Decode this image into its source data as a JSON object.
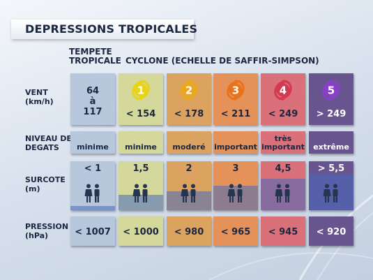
{
  "title": "DEPRESSIONS TROPICALES",
  "headers": {
    "tempete_line1": "TEMPETE",
    "tempete_line2": "TROPICALE",
    "cyclone": "CYCLONE (ECHELLE DE SAFFIR-SIMPSON)"
  },
  "rows": {
    "vent_line1": "VENT",
    "vent_line2": "(km/h)",
    "niveau_line1": "NIVEAU DE",
    "niveau_line2": "DEGATS",
    "surcote_line1": "SURCOTE",
    "surcote_line2": "(m)",
    "pression_line1": "PRESSION",
    "pression_line2": "(hPa)"
  },
  "columns": [
    {
      "category": "",
      "vent_a": "64",
      "vent_b": "à",
      "vent_c": "117",
      "vent": "",
      "degats": "minime",
      "degats2": "",
      "surcote": "< 1",
      "water_level": 0.12,
      "pression": "< 1007",
      "color": "#b7c7dc"
    },
    {
      "category": "1",
      "vent": "< 154",
      "degats": "minime",
      "degats2": "",
      "surcote": "1,5",
      "water_level": 0.42,
      "pression": "< 1000",
      "color": "#d4d89a",
      "icon_color": "#e8d21a"
    },
    {
      "category": "2",
      "vent": "< 178",
      "degats": "moderé",
      "degats2": "",
      "surcote": "2",
      "water_level": 0.52,
      "pression": "< 980",
      "color": "#dca360",
      "icon_color": "#e9a81e"
    },
    {
      "category": "3",
      "vent": "< 211",
      "degats": "important",
      "degats2": "",
      "surcote": "3",
      "water_level": 0.68,
      "pression": "< 965",
      "color": "#e5925a",
      "icon_color": "#e8731c"
    },
    {
      "category": "4",
      "vent": "< 249",
      "degats": "très",
      "degats2": "important",
      "surcote": "4,5",
      "water_level": 0.86,
      "pression": "< 945",
      "color": "#d9707a",
      "icon_color": "#d33a52"
    },
    {
      "category": "5",
      "vent": "> 249",
      "degats": "extrême",
      "degats2": "",
      "surcote": "> 5,5",
      "water_level": 1.0,
      "pression": "< 920",
      "color": "#68558f",
      "icon_color": "#8b3fc9"
    }
  ]
}
